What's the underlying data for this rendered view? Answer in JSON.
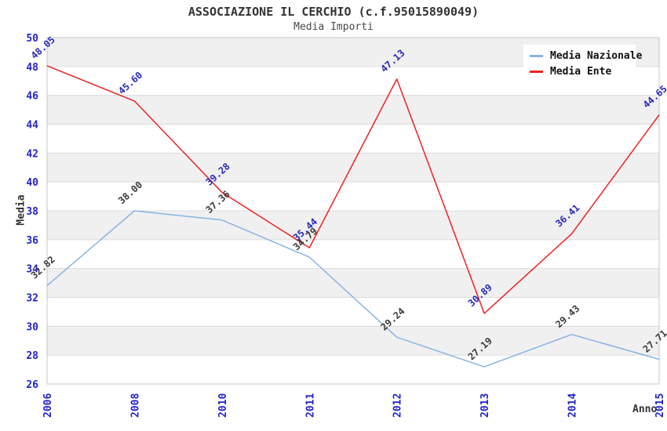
{
  "chart_data": {
    "type": "line",
    "title": "ASSOCIAZIONE IL CERCHIO (c.f.95015890049)",
    "subtitle": "Media Importi",
    "xlabel": "Anno",
    "ylabel": "Media",
    "categories": [
      "2006",
      "2008",
      "2010",
      "2011",
      "2012",
      "2013",
      "2014",
      "2015"
    ],
    "series": [
      {
        "name": "Media Nazionale",
        "color": "#86b4e4",
        "label_color": "#3a3a3a",
        "values": [
          32.82,
          38.0,
          37.36,
          34.79,
          29.24,
          27.19,
          29.43,
          27.71
        ]
      },
      {
        "name": "Media Ente",
        "color": "#ee2222",
        "label_color": "#2929b8",
        "values": [
          48.05,
          45.6,
          39.28,
          35.44,
          47.13,
          30.89,
          36.41,
          44.65
        ]
      }
    ],
    "ylim": [
      26,
      50
    ],
    "ytick_step": 2,
    "grid": true,
    "band_colors": [
      "#f0f0f0",
      "#ffffff"
    ],
    "gridline_color": "#dcdcdc",
    "border_color": "#c4c4c4",
    "tick_label_color": "#2323cd",
    "legend_position": "top-right",
    "value_label_decimals": 2
  }
}
